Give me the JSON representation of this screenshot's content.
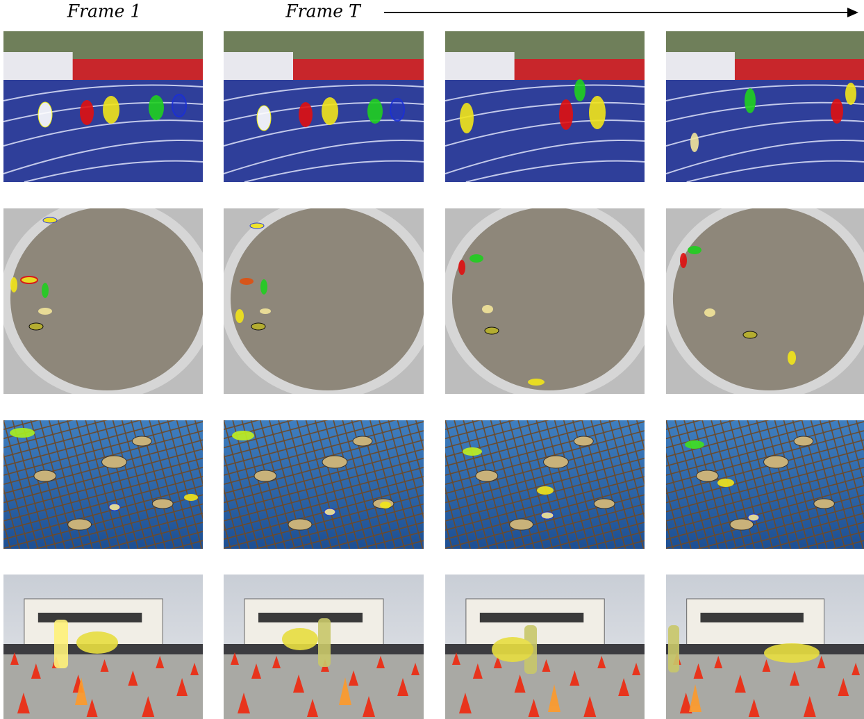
{
  "header": {
    "labels": [
      "Frame 1",
      "Frame T"
    ]
  }
}
